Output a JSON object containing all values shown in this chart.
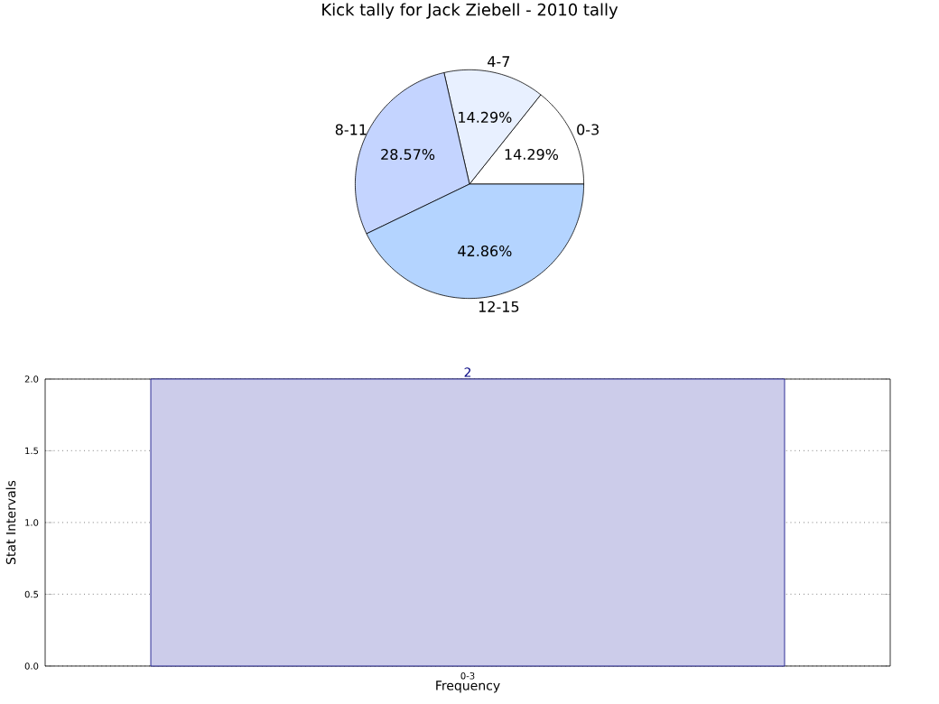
{
  "chart_data": [
    {
      "type": "pie",
      "title": "Kick tally for Jack Ziebell - 2010 tally",
      "categories": [
        "0-3",
        "4-7",
        "8-11",
        "12-15"
      ],
      "values": [
        14.29,
        14.29,
        28.57,
        42.86
      ],
      "value_labels": [
        "14.29%",
        "14.29%",
        "28.57%",
        "42.86%"
      ],
      "colors": [
        "#ffffff",
        "#e8f0ff",
        "#c4d4ff",
        "#b4d4ff"
      ]
    },
    {
      "type": "bar",
      "categories": [
        "0-3"
      ],
      "values": [
        2
      ],
      "color": "#ccccea",
      "data_labels": true,
      "xlabel": "Frequency",
      "ylabel": "Stat Intervals",
      "ylim": [
        0,
        2
      ],
      "yticks": [
        {
          "value": 0,
          "label": "0.0"
        },
        {
          "value": 0.5,
          "label": "0.5"
        },
        {
          "value": 1,
          "label": "1.0"
        },
        {
          "value": 1.5,
          "label": "1.5"
        },
        {
          "value": 2,
          "label": "2.0"
        }
      ],
      "grid": true
    }
  ]
}
